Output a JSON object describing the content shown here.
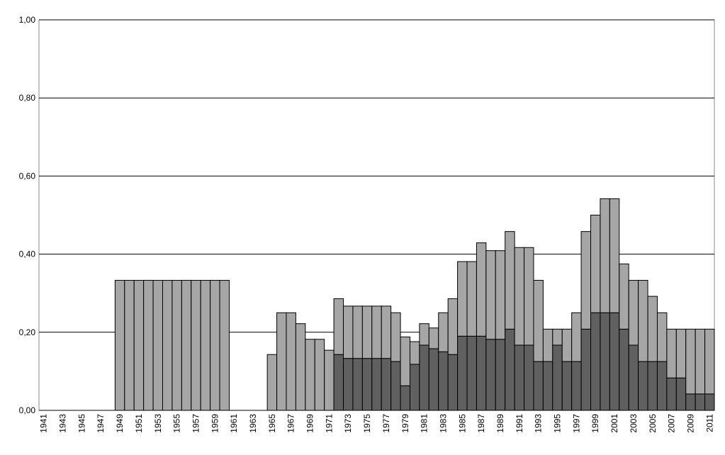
{
  "chart_data": {
    "type": "stacked_bar",
    "categories": [
      "1941",
      null,
      "1943",
      null,
      "1945",
      null,
      "1947",
      null,
      "1949",
      null,
      "1951",
      null,
      "1953",
      null,
      "1955",
      null,
      "1957",
      null,
      "1959",
      null,
      "1961",
      null,
      "1963",
      null,
      "1965",
      null,
      "1967",
      null,
      "1969",
      null,
      "1971",
      null,
      "1973",
      null,
      "1975",
      null,
      "1977",
      null,
      "1979",
      null,
      "1981",
      null,
      "1983",
      null,
      "1985",
      null,
      "1987",
      null,
      "1989",
      null,
      "1991",
      null,
      "1993",
      null,
      "1995",
      null,
      "1997",
      null,
      "1999",
      null,
      "2001",
      null,
      "2003",
      null,
      "2005",
      null,
      "2007",
      null,
      "2009",
      null,
      "2011"
    ],
    "series": [
      {
        "color": "#606060",
        "values": [
          0,
          0,
          0,
          0,
          0,
          0,
          0,
          0,
          0,
          0,
          0,
          0,
          0,
          0,
          0,
          0,
          0,
          0,
          0,
          0,
          0,
          0,
          0,
          0,
          0,
          0,
          0,
          0,
          0,
          0,
          0,
          0.143,
          0.133,
          0.133,
          0.133,
          0.133,
          0.133,
          0.125,
          0.063,
          0.118,
          0.167,
          0.158,
          0.15,
          0.143,
          0.19,
          0.19,
          0.19,
          0.182,
          0.182,
          0.208,
          0.167,
          0.167,
          0.125,
          0.125,
          0.167,
          0.125,
          0.125,
          0.208,
          0.25,
          0.25,
          0.25,
          0.208,
          0.167,
          0.125,
          0.125,
          0.125,
          0.083,
          0.083,
          0.042,
          0.042,
          0.042
        ]
      },
      {
        "color": "#a6a6a6",
        "values": [
          0,
          0,
          0,
          0,
          0,
          0,
          0,
          0,
          0.333,
          0.333,
          0.333,
          0.333,
          0.333,
          0.333,
          0.333,
          0.333,
          0.333,
          0.333,
          0.333,
          0.333,
          0,
          0,
          0,
          0,
          0.143,
          0.25,
          0.25,
          0.222,
          0.182,
          0.182,
          0.154,
          0.143,
          0.134,
          0.134,
          0.134,
          0.134,
          0.134,
          0.125,
          0.125,
          0.058,
          0.055,
          0.053,
          0.1,
          0.143,
          0.191,
          0.191,
          0.239,
          0.227,
          0.227,
          0.25,
          0.25,
          0.25,
          0.208,
          0.083,
          0.041,
          0.083,
          0.125,
          0.25,
          0.25,
          0.292,
          0.292,
          0.167,
          0.166,
          0.208,
          0.167,
          0.125,
          0.125,
          0.125,
          0.166,
          0.166,
          0.166
        ]
      }
    ],
    "ylim": [
      0,
      1
    ],
    "yticks": [
      {
        "value": 0,
        "label": "0,00"
      },
      {
        "value": 0.2,
        "label": "0,20"
      },
      {
        "value": 0.4,
        "label": "0,40"
      },
      {
        "value": 0.6,
        "label": "0,60"
      },
      {
        "value": 0.8,
        "label": "0,80"
      },
      {
        "value": 1,
        "label": "1,00"
      }
    ],
    "grid": true
  }
}
